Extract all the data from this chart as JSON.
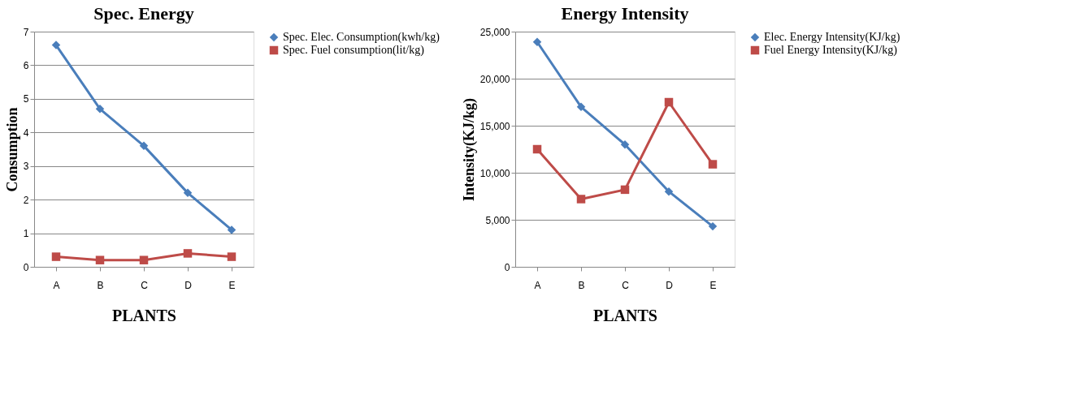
{
  "chart_data": [
    {
      "type": "line",
      "title": "Spec. Energy",
      "xlabel": "PLANTS",
      "ylabel": "Consumption",
      "categories": [
        "A",
        "B",
        "C",
        "D",
        "E"
      ],
      "ylim": [
        0,
        7
      ],
      "yticks": [
        0,
        1,
        2,
        3,
        4,
        5,
        6,
        7
      ],
      "grid": "y",
      "legend": "right",
      "series": [
        {
          "name": "Spec. Elec. Consumption(kwh/kg)",
          "color": "#4a7ebb",
          "marker": "diamond",
          "values": [
            6.6,
            4.7,
            3.6,
            2.2,
            1.1
          ]
        },
        {
          "name": "Spec. Fuel consumption(lit/kg)",
          "color": "#be4b48",
          "marker": "square",
          "values": [
            0.3,
            0.2,
            0.2,
            0.4,
            0.3
          ]
        }
      ]
    },
    {
      "type": "line",
      "title": "Energy Intensity",
      "xlabel": "PLANTS",
      "ylabel": "Intensity(KJ/kg)",
      "categories": [
        "A",
        "B",
        "C",
        "D",
        "E"
      ],
      "ylim": [
        0,
        25000
      ],
      "yticks": [
        {
          "value": 0,
          "label": "0"
        },
        {
          "value": 5000,
          "label": "5,000"
        },
        {
          "value": 10000,
          "label": "10,000"
        },
        {
          "value": 15000,
          "label": "15,000"
        },
        {
          "value": 20000,
          "label": "20,000"
        },
        {
          "value": 25000,
          "label": "25,000"
        }
      ],
      "grid": "y",
      "legend": "right",
      "series": [
        {
          "name": "Elec. Energy Intensity(KJ/kg)",
          "color": "#4a7ebb",
          "marker": "diamond",
          "values": [
            23900,
            17000,
            13000,
            8000,
            4300
          ]
        },
        {
          "name": "Fuel Energy Intensity(KJ/kg)",
          "color": "#be4b48",
          "marker": "square",
          "values": [
            12500,
            7200,
            8200,
            17500,
            10900
          ]
        }
      ]
    }
  ]
}
